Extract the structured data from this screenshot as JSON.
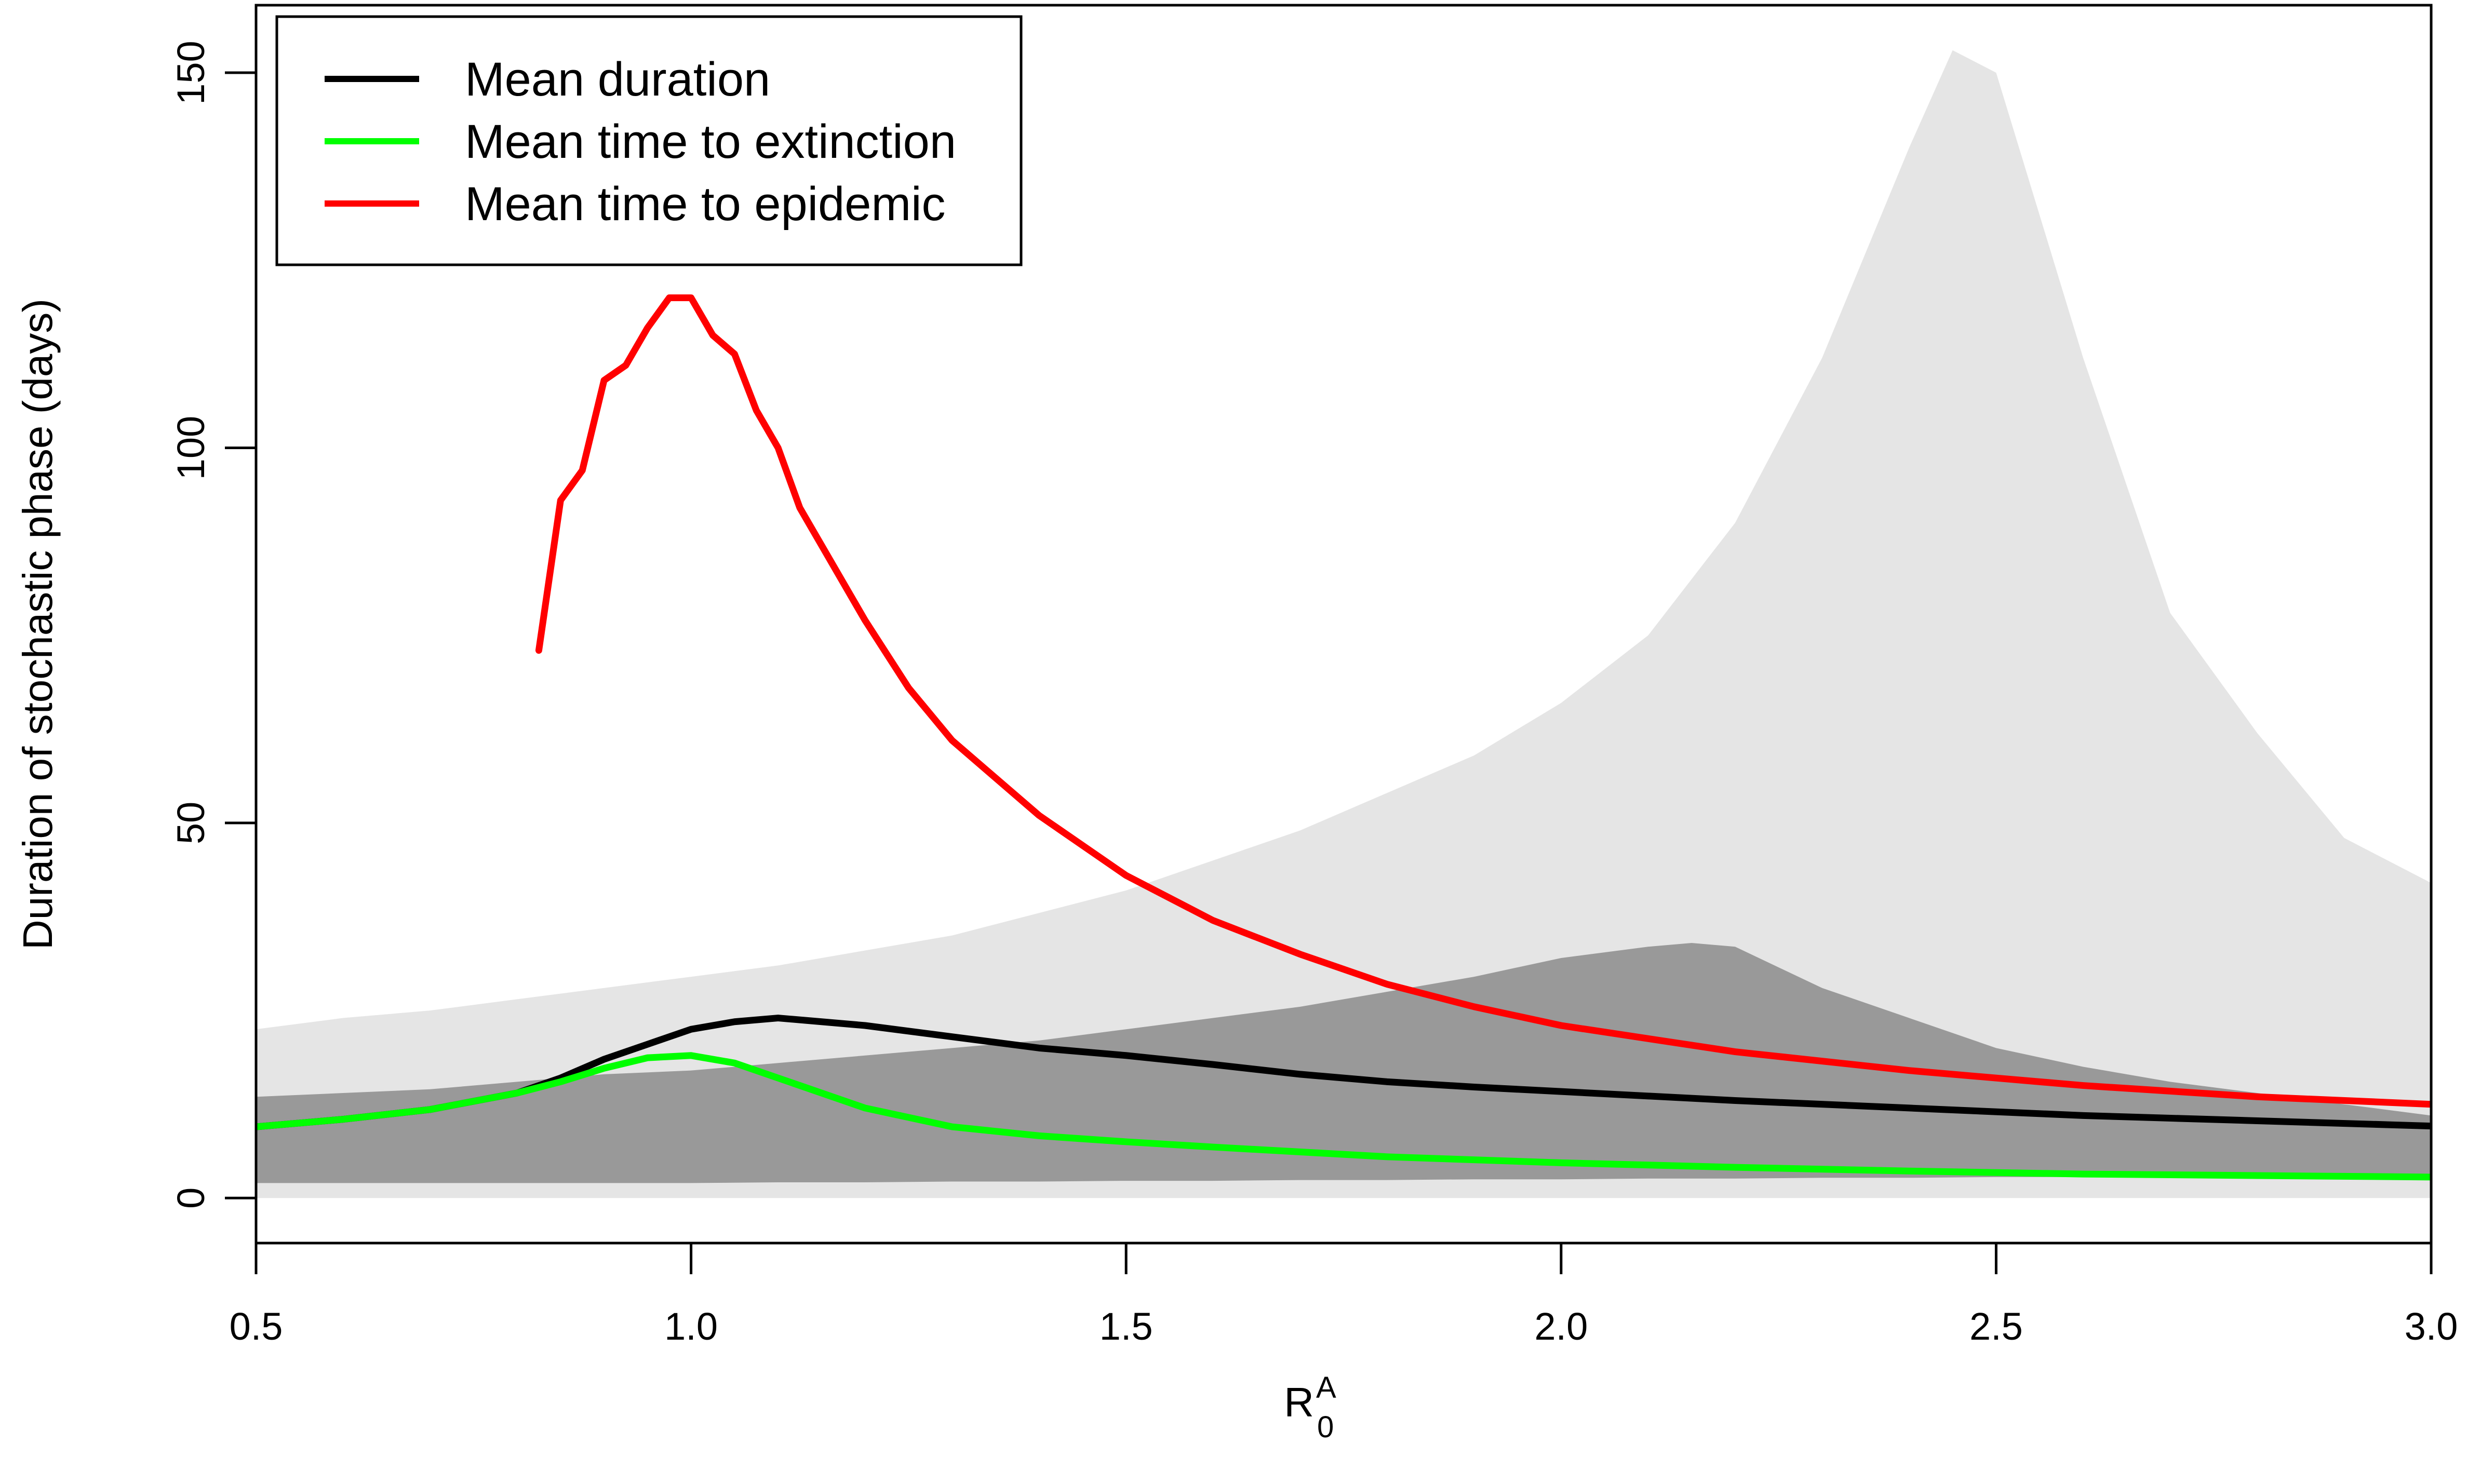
{
  "chart_data": {
    "type": "line",
    "title": "",
    "xlabel": {
      "base": "R",
      "subscript": "0",
      "superscript": "A"
    },
    "ylabel": "Duration of stochastic phase (days)",
    "xlim": [
      0.5,
      3.0
    ],
    "ylim": [
      -6,
      159
    ],
    "xticks": [
      0.5,
      1.0,
      1.5,
      2.0,
      2.5,
      3.0
    ],
    "xtick_labels": [
      "0.5",
      "1.0",
      "1.5",
      "2.0",
      "2.5",
      "3.0"
    ],
    "yticks": [
      0,
      50,
      100,
      150
    ],
    "ytick_labels": [
      "0",
      "50",
      "100",
      "150"
    ],
    "grid": false,
    "legend": {
      "position": "top-left",
      "entries": [
        {
          "label": "Mean duration",
          "color": "#000000"
        },
        {
          "label": "Mean time to extinction",
          "color": "#00ff00"
        },
        {
          "label": "Mean time to epidemic",
          "color": "#ff0000"
        }
      ]
    },
    "bands": [
      {
        "fill": "#e5e5e5",
        "x": [
          0.5,
          0.6,
          0.7,
          0.8,
          0.9,
          1.0,
          1.1,
          1.2,
          1.3,
          1.4,
          1.5,
          1.6,
          1.7,
          1.8,
          1.9,
          2.0,
          2.1,
          2.2,
          2.3,
          2.4,
          2.45,
          2.5,
          2.6,
          2.7,
          2.8,
          2.9,
          3.0
        ],
        "upper": [
          22.5,
          24,
          25,
          26.5,
          28,
          29.5,
          31,
          33,
          35,
          38,
          41,
          45,
          49,
          54,
          59,
          66,
          75,
          90,
          112,
          140,
          153,
          150,
          112,
          78,
          62,
          48,
          42
        ],
        "lower": [
          0,
          0,
          0,
          0,
          0,
          0,
          0,
          0,
          0,
          0,
          0,
          0,
          0,
          0,
          0,
          0,
          0,
          0,
          0,
          0,
          0,
          0,
          0,
          0,
          0,
          0,
          0
        ]
      },
      {
        "fill": "#999999",
        "x": [
          0.5,
          0.6,
          0.7,
          0.8,
          0.9,
          1.0,
          1.1,
          1.2,
          1.3,
          1.4,
          1.5,
          1.6,
          1.7,
          1.8,
          1.9,
          2.0,
          2.1,
          2.15,
          2.2,
          2.3,
          2.4,
          2.5,
          2.6,
          2.7,
          2.8,
          2.9,
          3.0
        ],
        "upper": [
          13.5,
          14,
          14.5,
          15.5,
          16.5,
          17,
          18,
          19,
          20,
          21,
          22.5,
          24,
          25.5,
          27.5,
          29.5,
          32,
          33.5,
          34,
          33.5,
          28,
          24,
          20,
          17.5,
          15.5,
          14,
          12.5,
          11
        ],
        "lower": [
          2,
          2,
          2,
          2,
          2,
          2,
          2.1,
          2.1,
          2.2,
          2.2,
          2.3,
          2.3,
          2.4,
          2.4,
          2.5,
          2.5,
          2.6,
          2.6,
          2.6,
          2.7,
          2.7,
          2.8,
          2.8,
          2.9,
          2.9,
          3,
          3
        ]
      }
    ],
    "series": [
      {
        "name": "Mean duration",
        "color": "#000000",
        "x": [
          0.5,
          0.6,
          0.7,
          0.8,
          0.85,
          0.9,
          0.95,
          1.0,
          1.05,
          1.1,
          1.15,
          1.2,
          1.3,
          1.4,
          1.5,
          1.6,
          1.7,
          1.8,
          1.9,
          2.0,
          2.2,
          2.4,
          2.6,
          2.8,
          3.0
        ],
        "y": [
          9.5,
          10.5,
          11.8,
          14,
          16,
          18.5,
          20.5,
          22.5,
          23.5,
          24,
          23.5,
          23,
          21.5,
          20,
          19,
          17.8,
          16.5,
          15.5,
          14.8,
          14.2,
          13,
          12,
          11,
          10.3,
          9.6
        ]
      },
      {
        "name": "Mean time to extinction",
        "color": "#00ff00",
        "x": [
          0.5,
          0.6,
          0.7,
          0.8,
          0.85,
          0.9,
          0.95,
          1.0,
          1.05,
          1.1,
          1.2,
          1.3,
          1.4,
          1.5,
          1.6,
          1.8,
          2.0,
          2.2,
          2.4,
          2.6,
          2.8,
          3.0
        ],
        "y": [
          9.5,
          10.5,
          11.8,
          14,
          15.5,
          17.3,
          18.7,
          19,
          18,
          16,
          12,
          9.5,
          8.3,
          7.5,
          6.8,
          5.5,
          4.7,
          4.1,
          3.6,
          3.2,
          3,
          2.8
        ]
      },
      {
        "name": "Mean time to epidemic",
        "color": "#ff0000",
        "x": [
          0.825,
          0.85,
          0.875,
          0.9,
          0.925,
          0.95,
          0.975,
          1.0,
          1.025,
          1.05,
          1.075,
          1.1,
          1.125,
          1.15,
          1.2,
          1.25,
          1.3,
          1.4,
          1.5,
          1.6,
          1.7,
          1.8,
          1.9,
          2.0,
          2.2,
          2.4,
          2.6,
          2.8,
          3.0
        ],
        "y": [
          73,
          93,
          97,
          109,
          111,
          116,
          120,
          120,
          115,
          112.5,
          105,
          100,
          92,
          87,
          77,
          68,
          61,
          51,
          43,
          37,
          32.5,
          28.5,
          25.5,
          23,
          19.5,
          17,
          15,
          13.5,
          12.5
        ]
      }
    ]
  }
}
